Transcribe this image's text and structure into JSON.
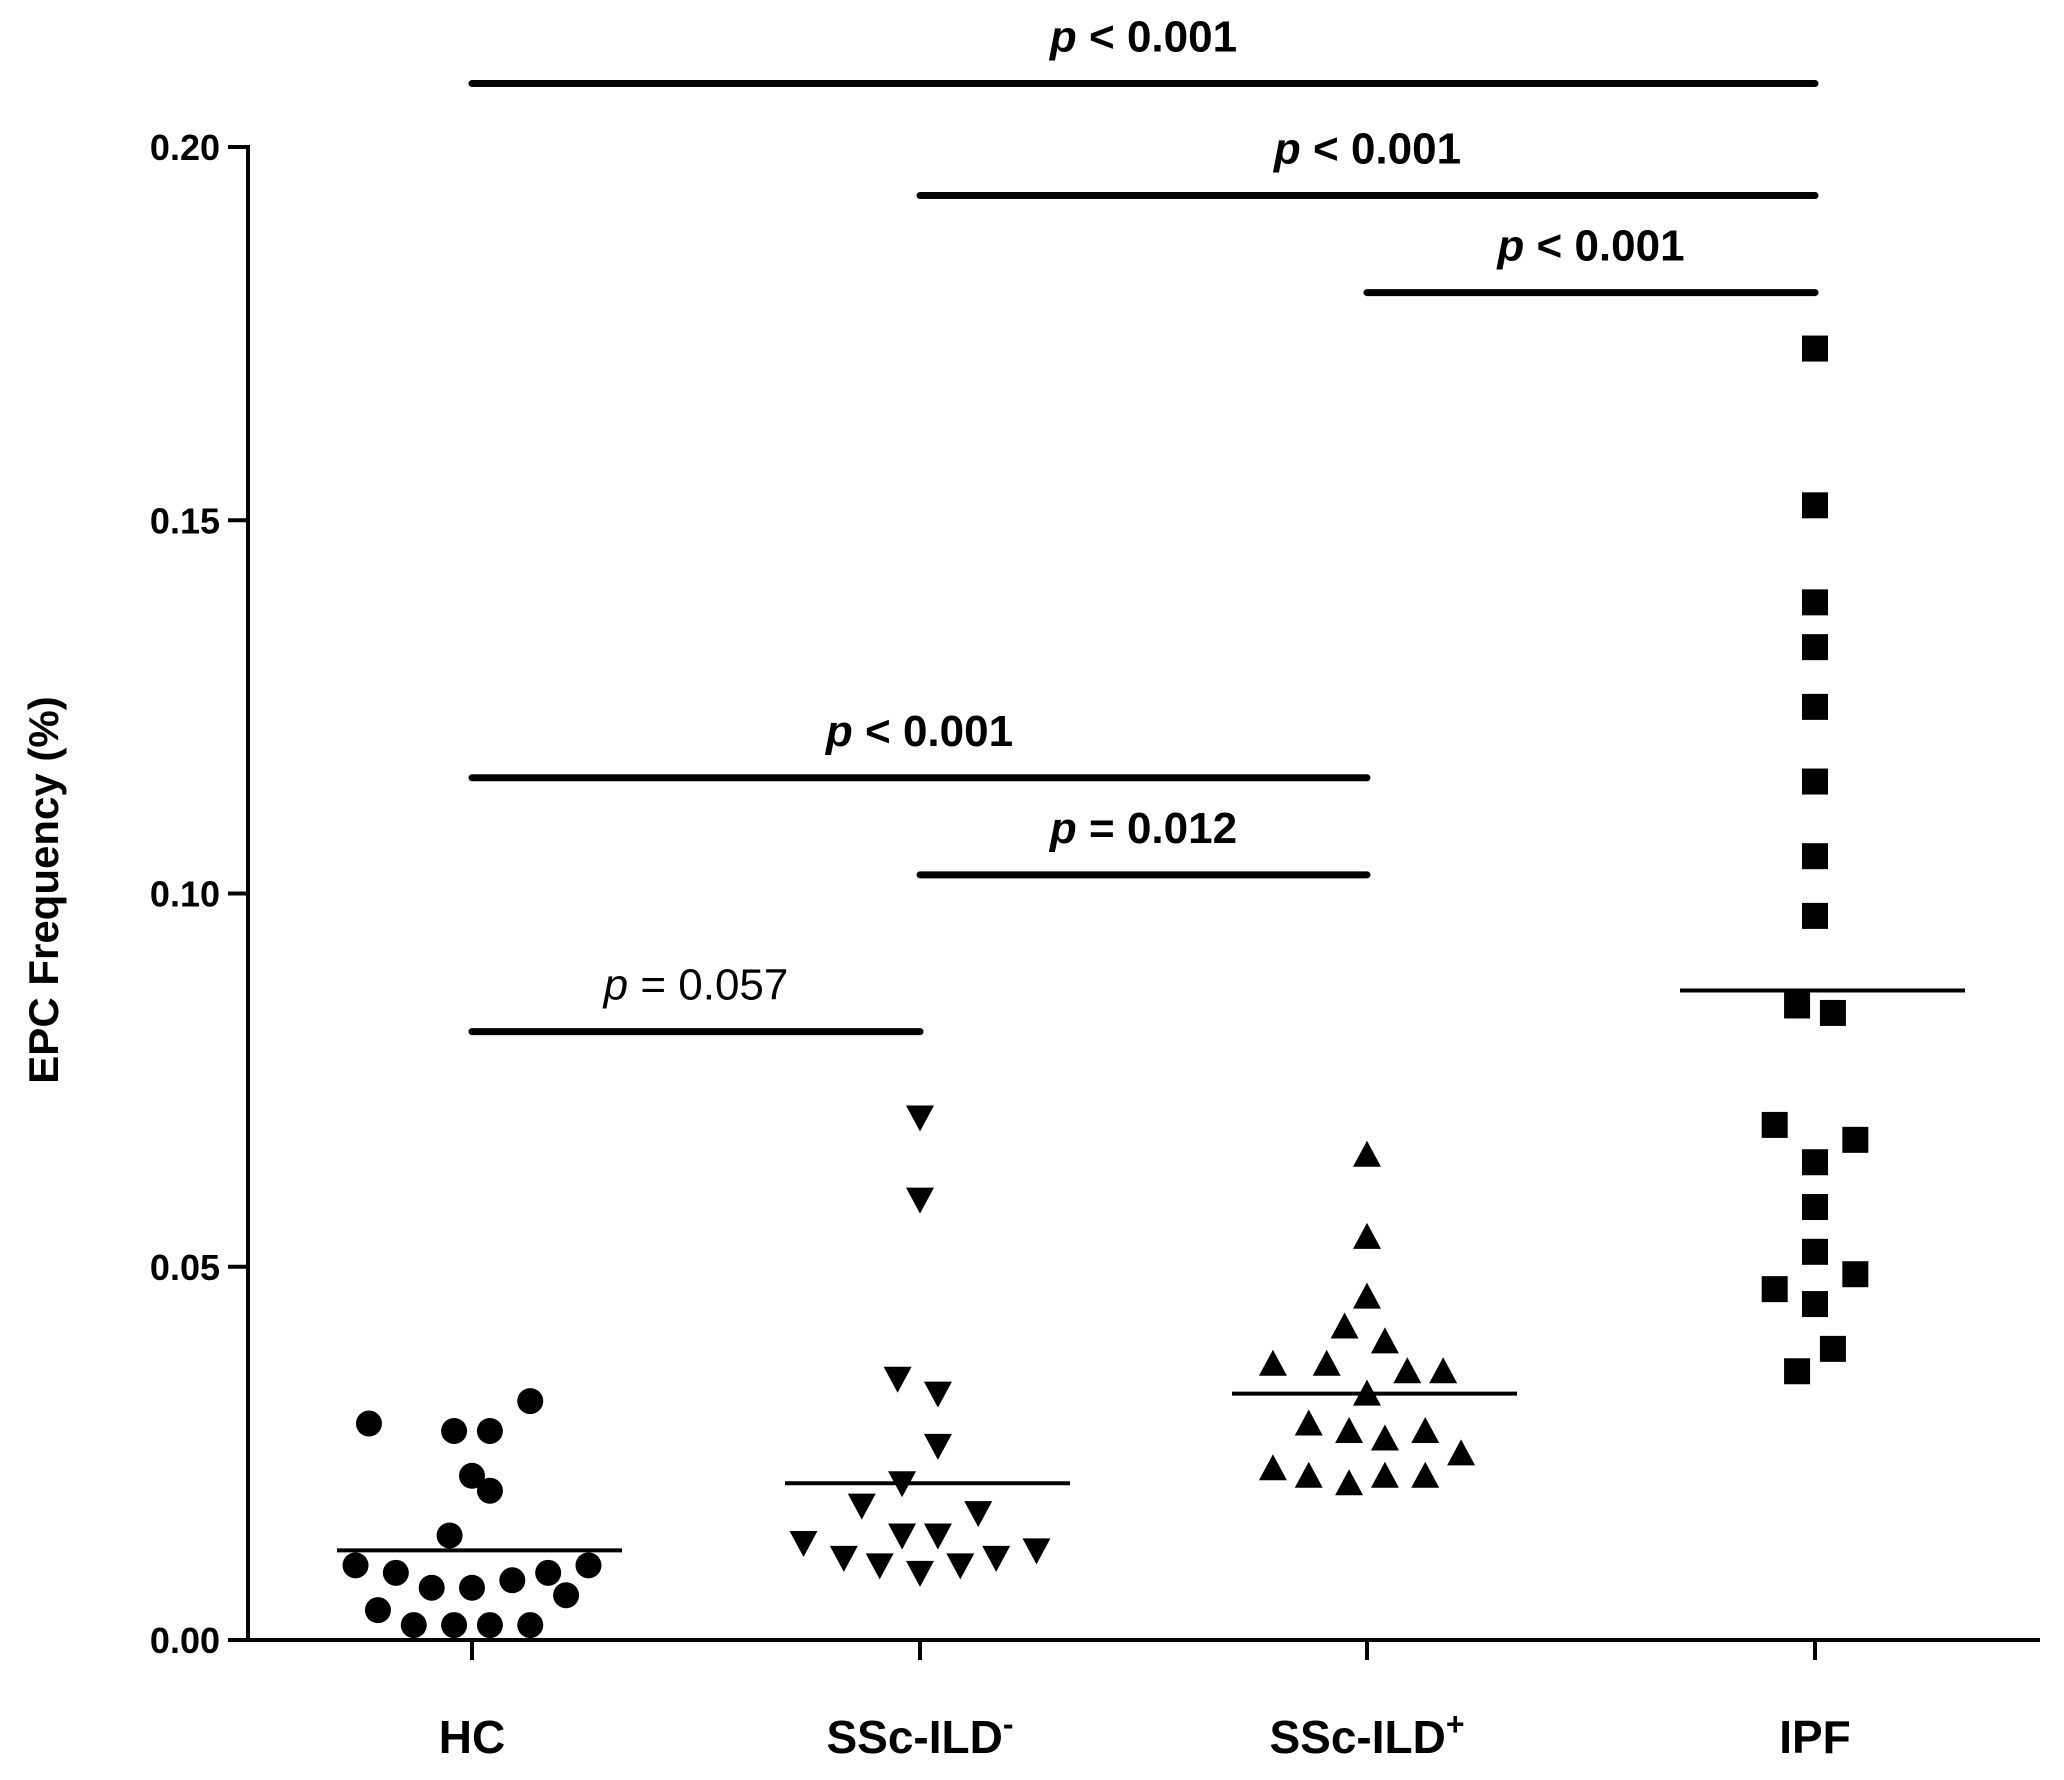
{
  "chart_data": {
    "type": "scatter",
    "subtype": "dot-plot",
    "ylabel": "EPC Frequency (%)",
    "ylim": [
      0,
      0.2
    ],
    "yticks": [
      "0.00",
      "0.05",
      "0.10",
      "0.15",
      "0.20"
    ],
    "yticks_values": [
      0,
      0.05,
      0.1,
      0.15,
      0.2
    ],
    "categories": [
      {
        "base": "HC",
        "sup": ""
      },
      {
        "base": "SSc-ILD",
        "sup": "-"
      },
      {
        "base": "SSc-ILD",
        "sup": "+"
      },
      {
        "base": "IPF",
        "sup": ""
      }
    ],
    "series": [
      {
        "name": "HC",
        "marker": "circle",
        "mean": 0.012,
        "points": [
          {
            "y": 0.029,
            "off": -0.23
          },
          {
            "y": 0.028,
            "off": -0.04
          },
          {
            "y": 0.028,
            "off": 0.04
          },
          {
            "y": 0.032,
            "off": 0.13
          },
          {
            "y": 0.022,
            "off": 0.0
          },
          {
            "y": 0.02,
            "off": 0.04
          },
          {
            "y": 0.014,
            "off": -0.05
          },
          {
            "y": 0.01,
            "off": -0.26
          },
          {
            "y": 0.009,
            "off": -0.17
          },
          {
            "y": 0.007,
            "off": -0.09
          },
          {
            "y": 0.007,
            "off": 0.0
          },
          {
            "y": 0.008,
            "off": 0.09
          },
          {
            "y": 0.009,
            "off": 0.17
          },
          {
            "y": 0.01,
            "off": 0.26
          },
          {
            "y": 0.006,
            "off": 0.21
          },
          {
            "y": 0.004,
            "off": -0.21
          },
          {
            "y": 0.002,
            "off": -0.13
          },
          {
            "y": 0.002,
            "off": -0.04
          },
          {
            "y": 0.002,
            "off": 0.04
          },
          {
            "y": 0.002,
            "off": 0.13
          }
        ]
      },
      {
        "name": "SSc-ILD-",
        "marker": "triangle-down",
        "mean": 0.021,
        "points": [
          {
            "y": 0.07,
            "off": 0.0
          },
          {
            "y": 0.059,
            "off": 0.0
          },
          {
            "y": 0.035,
            "off": -0.05
          },
          {
            "y": 0.033,
            "off": 0.04
          },
          {
            "y": 0.026,
            "off": 0.04
          },
          {
            "y": 0.021,
            "off": -0.04
          },
          {
            "y": 0.018,
            "off": -0.13
          },
          {
            "y": 0.017,
            "off": 0.13
          },
          {
            "y": 0.014,
            "off": -0.04
          },
          {
            "y": 0.014,
            "off": 0.04
          },
          {
            "y": 0.013,
            "off": -0.26
          },
          {
            "y": 0.012,
            "off": 0.26
          },
          {
            "y": 0.011,
            "off": -0.17
          },
          {
            "y": 0.01,
            "off": -0.09
          },
          {
            "y": 0.009,
            "off": 0.0
          },
          {
            "y": 0.01,
            "off": 0.09
          },
          {
            "y": 0.011,
            "off": 0.17
          }
        ]
      },
      {
        "name": "SSc-ILD+",
        "marker": "triangle-up",
        "mean": 0.033,
        "points": [
          {
            "y": 0.065,
            "off": 0.0
          },
          {
            "y": 0.054,
            "off": 0.0
          },
          {
            "y": 0.046,
            "off": 0.0
          },
          {
            "y": 0.042,
            "off": -0.05
          },
          {
            "y": 0.04,
            "off": 0.04
          },
          {
            "y": 0.037,
            "off": -0.21
          },
          {
            "y": 0.037,
            "off": -0.09
          },
          {
            "y": 0.036,
            "off": 0.09
          },
          {
            "y": 0.036,
            "off": 0.17
          },
          {
            "y": 0.033,
            "off": 0.0
          },
          {
            "y": 0.029,
            "off": -0.13
          },
          {
            "y": 0.028,
            "off": -0.04
          },
          {
            "y": 0.028,
            "off": 0.13
          },
          {
            "y": 0.027,
            "off": 0.04
          },
          {
            "y": 0.025,
            "off": 0.21
          },
          {
            "y": 0.023,
            "off": -0.21
          },
          {
            "y": 0.022,
            "off": -0.13
          },
          {
            "y": 0.021,
            "off": -0.04
          },
          {
            "y": 0.022,
            "off": 0.04
          },
          {
            "y": 0.022,
            "off": 0.13
          }
        ]
      },
      {
        "name": "IPF",
        "marker": "square",
        "mean": 0.087,
        "points": [
          {
            "y": 0.173,
            "off": 0.0
          },
          {
            "y": 0.152,
            "off": 0.0
          },
          {
            "y": 0.139,
            "off": 0.0
          },
          {
            "y": 0.133,
            "off": 0.0
          },
          {
            "y": 0.125,
            "off": 0.0
          },
          {
            "y": 0.115,
            "off": 0.0
          },
          {
            "y": 0.105,
            "off": 0.0
          },
          {
            "y": 0.097,
            "off": 0.0
          },
          {
            "y": 0.085,
            "off": -0.04
          },
          {
            "y": 0.084,
            "off": 0.04
          },
          {
            "y": 0.069,
            "off": -0.09
          },
          {
            "y": 0.067,
            "off": 0.09
          },
          {
            "y": 0.064,
            "off": 0.0
          },
          {
            "y": 0.058,
            "off": 0.0
          },
          {
            "y": 0.052,
            "off": 0.0
          },
          {
            "y": 0.049,
            "off": 0.09
          },
          {
            "y": 0.047,
            "off": -0.09
          },
          {
            "y": 0.045,
            "off": 0.0
          },
          {
            "y": 0.039,
            "off": 0.04
          },
          {
            "y": 0.036,
            "off": -0.04
          }
        ]
      }
    ],
    "comparisons": [
      {
        "from": 0,
        "to": 3,
        "p_symbol": "p",
        "p_text": " < 0.001",
        "bold": true,
        "y": 0.2085
      },
      {
        "from": 1,
        "to": 3,
        "p_symbol": "p",
        "p_text": " < 0.001",
        "bold": true,
        "y": 0.1935
      },
      {
        "from": 2,
        "to": 3,
        "p_symbol": "p",
        "p_text": " < 0.001",
        "bold": true,
        "y": 0.1805
      },
      {
        "from": 0,
        "to": 2,
        "p_symbol": "p",
        "p_text": " < 0.001",
        "bold": true,
        "y": 0.1155
      },
      {
        "from": 1,
        "to": 2,
        "p_symbol": "p",
        "p_text": " = 0.012",
        "bold": true,
        "y": 0.1025
      },
      {
        "from": 0,
        "to": 1,
        "p_symbol": "p",
        "p_text": " = 0.057",
        "bold": false,
        "y": 0.0815
      }
    ]
  }
}
